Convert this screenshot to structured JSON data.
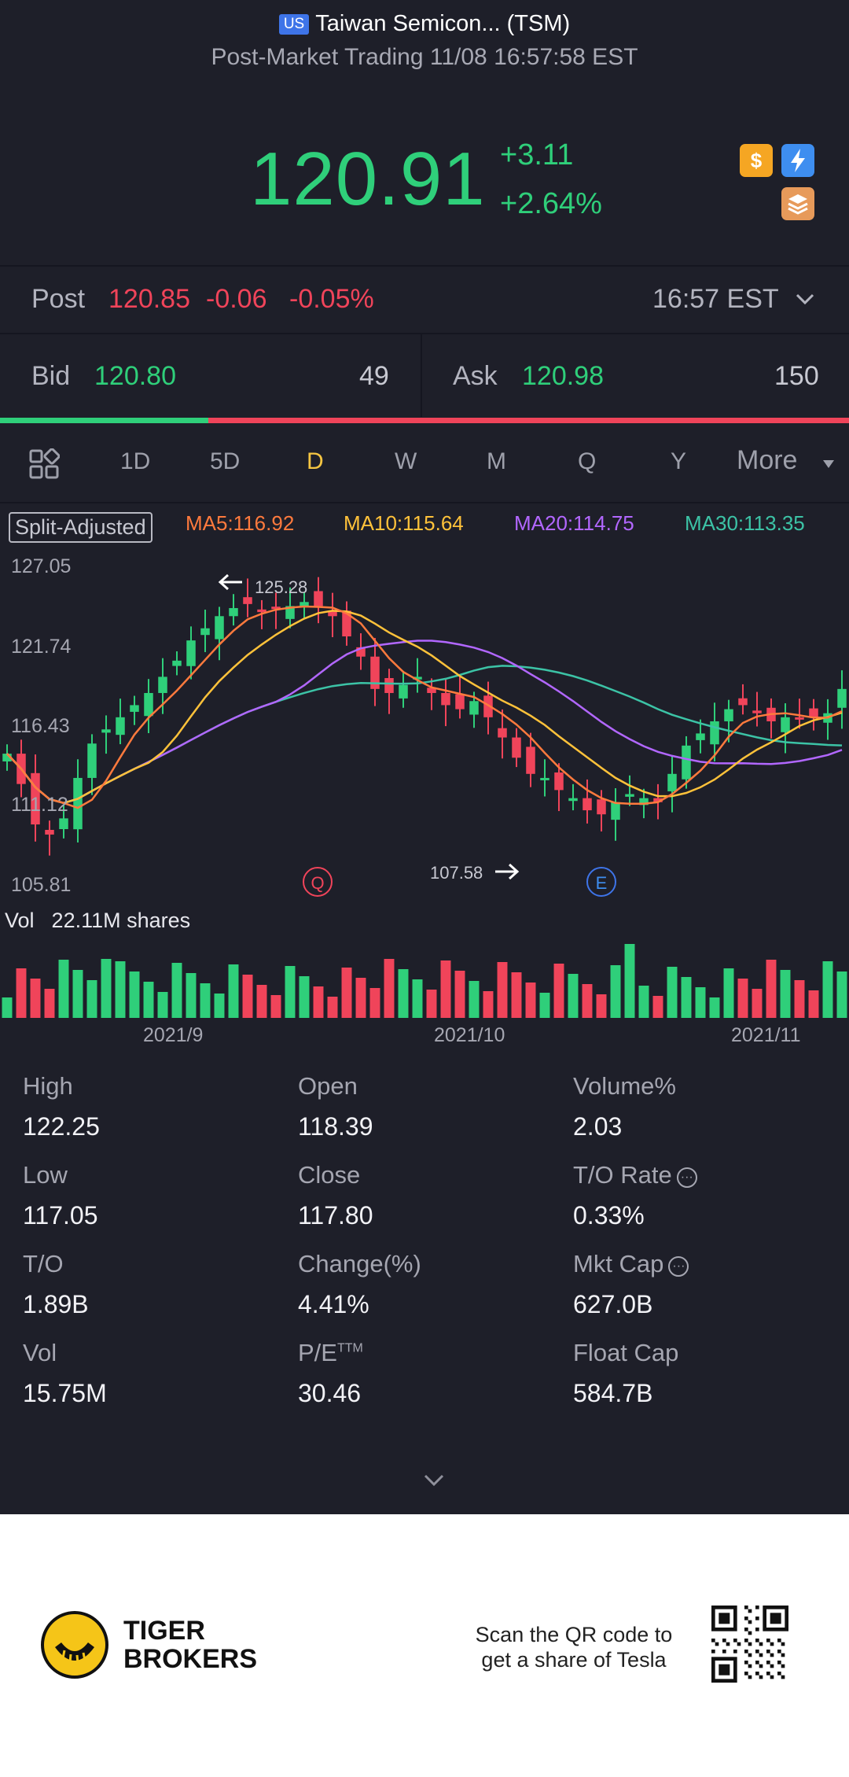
{
  "header": {
    "market_badge": "US",
    "title": "Taiwan Semicon... (TSM)",
    "subtitle": "Post-Market Trading 11/08 16:57:58 EST"
  },
  "quote": {
    "price": "120.91",
    "change": "+3.11",
    "change_pct": "+2.64%",
    "up_color": "#2fcf7a",
    "down_color": "#f0445a"
  },
  "post": {
    "label": "Post",
    "price": "120.85",
    "change": "-0.06",
    "change_pct": "-0.05%",
    "time": "16:57 EST"
  },
  "bidask": {
    "bid_label": "Bid",
    "bid_price": "120.80",
    "bid_size": "49",
    "ask_label": "Ask",
    "ask_price": "120.98",
    "ask_size": "150",
    "bid_ratio": 0.245
  },
  "toolbar": {
    "periods": [
      "1D",
      "5D",
      "D",
      "W",
      "M",
      "Q",
      "Y"
    ],
    "active": "D",
    "more": "More"
  },
  "indicators": {
    "split_label": "Split-Adjusted",
    "ma5": "MA5:116.92",
    "ma10": "MA10:115.64",
    "ma20": "MA20:114.75",
    "ma30": "MA30:113.35",
    "colors": {
      "ma5": "#ff7a3d",
      "ma10": "#ffc23a",
      "ma20": "#b267ff",
      "ma30": "#3cc3a6"
    }
  },
  "chart_data": {
    "type": "candlestick",
    "y_axis_labels": [
      "127.05",
      "121.74",
      "116.43",
      "111.12",
      "105.81"
    ],
    "ylim": [
      105.81,
      127.05
    ],
    "x_axis_labels": [
      "2021/9",
      "2021/10",
      "2021/11"
    ],
    "high_annotation": "125.28",
    "low_annotation": "107.58",
    "event_markers": [
      "Q",
      "E"
    ],
    "volume_label": "Vol",
    "volume_value": "22.11M shares"
  },
  "stats": [
    {
      "label": "High",
      "value": "122.25"
    },
    {
      "label": "Open",
      "value": "118.39"
    },
    {
      "label": "Volume%",
      "value": "2.03"
    },
    {
      "label": "Low",
      "value": "117.05"
    },
    {
      "label": "Close",
      "value": "117.80"
    },
    {
      "label": "T/O Rate",
      "value": "0.33%"
    },
    {
      "label": "T/O",
      "value": "1.89B"
    },
    {
      "label": "Change(%)",
      "value": "4.41%"
    },
    {
      "label": "Mkt Cap",
      "value": "627.0B"
    },
    {
      "label": "Vol",
      "value": "15.75M"
    },
    {
      "label": "P/E",
      "value": "30.46"
    },
    {
      "label": "Float Cap",
      "value": "584.7B"
    }
  ],
  "pe_suffix": "TTM",
  "footer": {
    "brand_line1": "TIGER",
    "brand_line2": "BROKERS",
    "qr_line1": "Scan the QR code to",
    "qr_line2": "get a share of Tesla"
  }
}
